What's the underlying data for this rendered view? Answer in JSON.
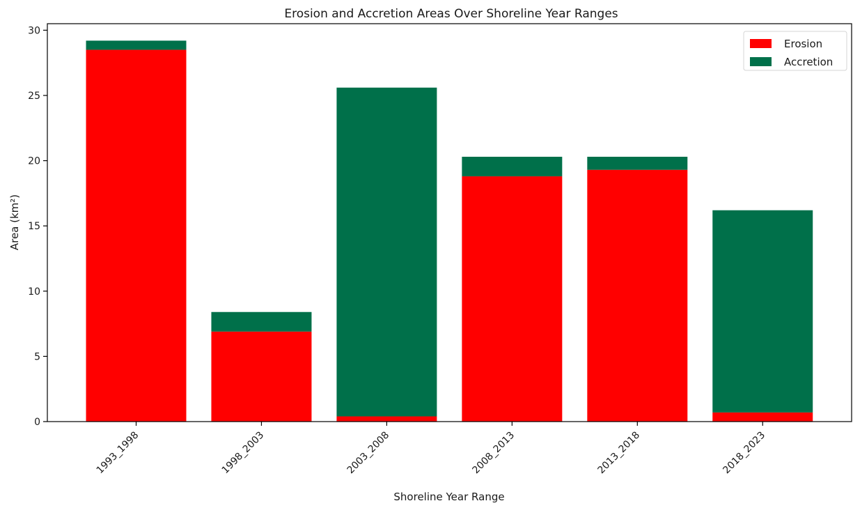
{
  "chart_data": {
    "type": "bar",
    "stacked": true,
    "title": "Erosion and Accretion Areas Over Shoreline Year Ranges",
    "xlabel": "Shoreline Year Range",
    "ylabel": "Area (km²)",
    "categories": [
      "1993_1998",
      "1998_2003",
      "2003_2008",
      "2008_2013",
      "2013_2018",
      "2018_2023"
    ],
    "series": [
      {
        "name": "Erosion",
        "color": "#ff0000",
        "values": [
          28.5,
          6.9,
          0.4,
          18.8,
          19.3,
          0.7
        ]
      },
      {
        "name": "Accretion",
        "color": "#00704a",
        "values": [
          0.7,
          1.5,
          25.2,
          1.5,
          1.0,
          15.5
        ]
      }
    ],
    "ylim": [
      0,
      30.5
    ],
    "yticks": [
      0,
      5,
      10,
      15,
      20,
      25,
      30
    ],
    "grid": false,
    "legend_position": "top-right"
  }
}
